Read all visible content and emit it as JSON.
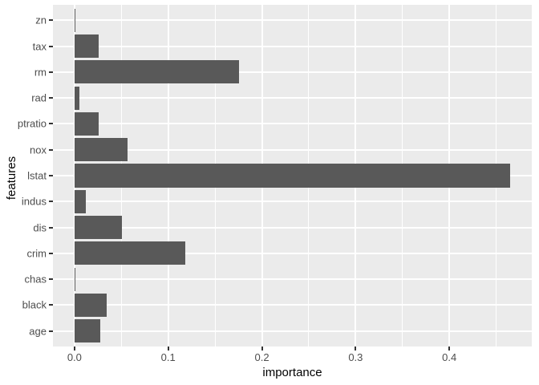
{
  "chart_data": {
    "type": "bar",
    "orientation": "horizontal",
    "title": "",
    "xlabel": "importance",
    "ylabel": "features",
    "categories_top_to_bottom": [
      "zn",
      "tax",
      "rm",
      "rad",
      "ptratio",
      "nox",
      "lstat",
      "indus",
      "dis",
      "crim",
      "chas",
      "black",
      "age"
    ],
    "values": [
      0.0012,
      0.0262,
      0.176,
      0.0053,
      0.0257,
      0.0563,
      0.4648,
      0.0123,
      0.0504,
      0.118,
      0.0012,
      0.0342,
      0.0271
    ],
    "x_tick_labels": [
      "0.0",
      "0.1",
      "0.2",
      "0.3",
      "0.4"
    ],
    "x_tick_values": [
      0.0,
      0.1,
      0.2,
      0.3,
      0.4
    ],
    "x_minor_tick_values": [
      0.05,
      0.15,
      0.25,
      0.35,
      0.45
    ],
    "xlim": [
      -0.023,
      0.488
    ],
    "bar_width_fraction": 0.9,
    "grid": true,
    "legend_position": "none"
  },
  "style": {
    "bar_fill": "#595959",
    "panel_bg": "#EBEBEB",
    "grid_color": "#FFFFFF",
    "tick_mark_color": "#333333",
    "tick_label_color": "#4D4D4D",
    "axis_title_color": "#000000",
    "background": "#FFFFFF"
  }
}
